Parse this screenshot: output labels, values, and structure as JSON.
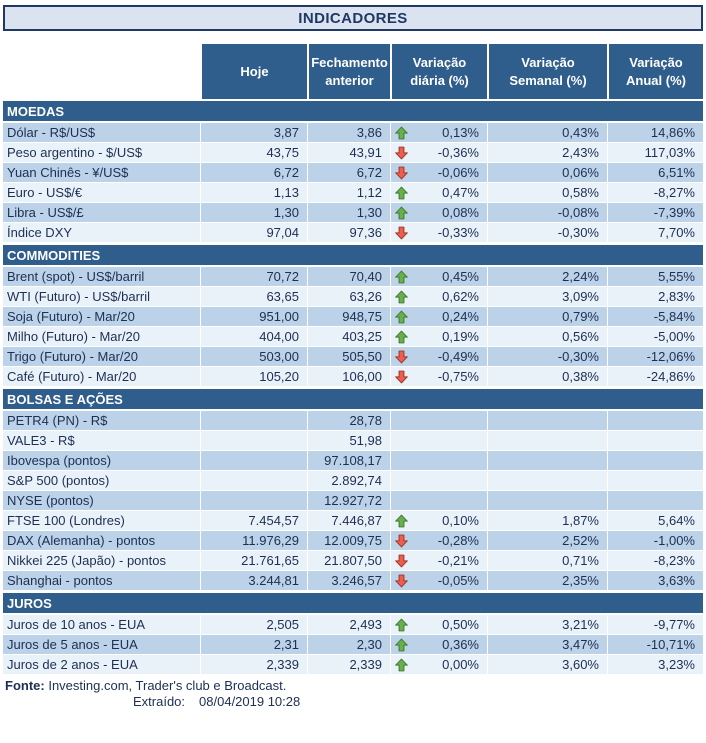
{
  "title": "INDICADORES",
  "columns": [
    "Hoje",
    "Fechamento anterior",
    "Variação diária (%)",
    "Variação Semanal (%)",
    "Variação Anual (%)"
  ],
  "colors": {
    "header_blue": "#2f5d8c",
    "band_blue": "#bcd2e8",
    "band_light": "#eaf2f9",
    "title_bg": "#dbe3f1",
    "title_border": "#1f3864",
    "title_text": "#1f3864",
    "arrow_up": "#66b04e",
    "arrow_up_border": "#44792f",
    "arrow_down": "#e8604f",
    "arrow_down_border": "#a33327"
  },
  "sections": [
    {
      "name": "MOEDAS",
      "rows": [
        {
          "label": "Dólar - R$/US$",
          "hoje": "3,87",
          "fech": "3,86",
          "arrow": "up",
          "dia": "0,13%",
          "sem": "0,43%",
          "ano": "14,86%"
        },
        {
          "label": "Peso argentino - $/US$",
          "hoje": "43,75",
          "fech": "43,91",
          "arrow": "down",
          "dia": "-0,36%",
          "sem": "2,43%",
          "ano": "117,03%"
        },
        {
          "label": "Yuan Chinês - ¥/US$",
          "hoje": "6,72",
          "fech": "6,72",
          "arrow": "down",
          "dia": "-0,06%",
          "sem": "0,06%",
          "ano": "6,51%"
        },
        {
          "label": "Euro - US$/€",
          "hoje": "1,13",
          "fech": "1,12",
          "arrow": "up",
          "dia": "0,47%",
          "sem": "0,58%",
          "ano": "-8,27%"
        },
        {
          "label": "Libra - US$/£",
          "hoje": "1,30",
          "fech": "1,30",
          "arrow": "up",
          "dia": "0,08%",
          "sem": "-0,08%",
          "ano": "-7,39%"
        },
        {
          "label": "Índice DXY",
          "hoje": "97,04",
          "fech": "97,36",
          "arrow": "down",
          "dia": "-0,33%",
          "sem": "-0,30%",
          "ano": "7,70%"
        }
      ]
    },
    {
      "name": "COMMODITIES",
      "rows": [
        {
          "label": "Brent (spot) - US$/barril",
          "hoje": "70,72",
          "fech": "70,40",
          "arrow": "up",
          "dia": "0,45%",
          "sem": "2,24%",
          "ano": "5,55%"
        },
        {
          "label": "WTI (Futuro) - US$/barril",
          "hoje": "63,65",
          "fech": "63,26",
          "arrow": "up",
          "dia": "0,62%",
          "sem": "3,09%",
          "ano": "2,83%"
        },
        {
          "label": "Soja (Futuro) - Mar/20",
          "hoje": "951,00",
          "fech": "948,75",
          "arrow": "up",
          "dia": "0,24%",
          "sem": "0,79%",
          "ano": "-5,84%"
        },
        {
          "label": "Milho (Futuro) - Mar/20",
          "hoje": "404,00",
          "fech": "403,25",
          "arrow": "up",
          "dia": "0,19%",
          "sem": "0,56%",
          "ano": "-5,00%"
        },
        {
          "label": "Trigo (Futuro) - Mar/20",
          "hoje": "503,00",
          "fech": "505,50",
          "arrow": "down",
          "dia": "-0,49%",
          "sem": "-0,30%",
          "ano": "-12,06%"
        },
        {
          "label": "Café (Futuro) - Mar/20",
          "hoje": "105,20",
          "fech": "106,00",
          "arrow": "down",
          "dia": "-0,75%",
          "sem": "0,38%",
          "ano": "-24,86%"
        }
      ]
    },
    {
      "name": "BOLSAS E AÇÕES",
      "rows": [
        {
          "label": "PETR4 (PN) - R$",
          "hoje": "",
          "fech": "28,78",
          "arrow": null,
          "dia": "",
          "sem": "",
          "ano": ""
        },
        {
          "label": "VALE3 - R$",
          "hoje": "",
          "fech": "51,98",
          "arrow": null,
          "dia": "",
          "sem": "",
          "ano": ""
        },
        {
          "label": "Ibovespa (pontos)",
          "hoje": "",
          "fech": "97.108,17",
          "arrow": null,
          "dia": "",
          "sem": "",
          "ano": ""
        },
        {
          "label": "S&P 500 (pontos)",
          "hoje": "",
          "fech": "2.892,74",
          "arrow": null,
          "dia": "",
          "sem": "",
          "ano": ""
        },
        {
          "label": "NYSE (pontos)",
          "hoje": "",
          "fech": "12.927,72",
          "arrow": null,
          "dia": "",
          "sem": "",
          "ano": ""
        },
        {
          "label": "FTSE 100 (Londres)",
          "hoje": "7.454,57",
          "fech": "7.446,87",
          "arrow": "up",
          "dia": "0,10%",
          "sem": "1,87%",
          "ano": "5,64%"
        },
        {
          "label": "DAX (Alemanha) - pontos",
          "hoje": "11.976,29",
          "fech": "12.009,75",
          "arrow": "down",
          "dia": "-0,28%",
          "sem": "2,52%",
          "ano": "-1,00%"
        },
        {
          "label": "Nikkei 225 (Japão) - pontos",
          "hoje": "21.761,65",
          "fech": "21.807,50",
          "arrow": "down",
          "dia": "-0,21%",
          "sem": "0,71%",
          "ano": "-8,23%"
        },
        {
          "label": "Shanghai - pontos",
          "hoje": "3.244,81",
          "fech": "3.246,57",
          "arrow": "down",
          "dia": "-0,05%",
          "sem": "2,35%",
          "ano": "3,63%"
        }
      ]
    },
    {
      "name": "JUROS",
      "rows": [
        {
          "label": "Juros de 10 anos - EUA",
          "hoje": "2,505",
          "fech": "2,493",
          "arrow": "up",
          "dia": "0,50%",
          "sem": "3,21%",
          "ano": "-9,77%"
        },
        {
          "label": "Juros de 5 anos - EUA",
          "hoje": "2,31",
          "fech": "2,30",
          "arrow": "up",
          "dia": "0,36%",
          "sem": "3,47%",
          "ano": "-10,71%"
        },
        {
          "label": "Juros de 2 anos - EUA",
          "hoje": "2,339",
          "fech": "2,339",
          "arrow": "up",
          "dia": "0,00%",
          "sem": "3,60%",
          "ano": "3,23%"
        }
      ]
    }
  ],
  "footer": {
    "source_label": "Fonte:",
    "source_text": "Investing.com, Trader's club e Broadcast.",
    "extracted_label": "Extraído:",
    "extracted_value": "08/04/2019 10:28"
  }
}
